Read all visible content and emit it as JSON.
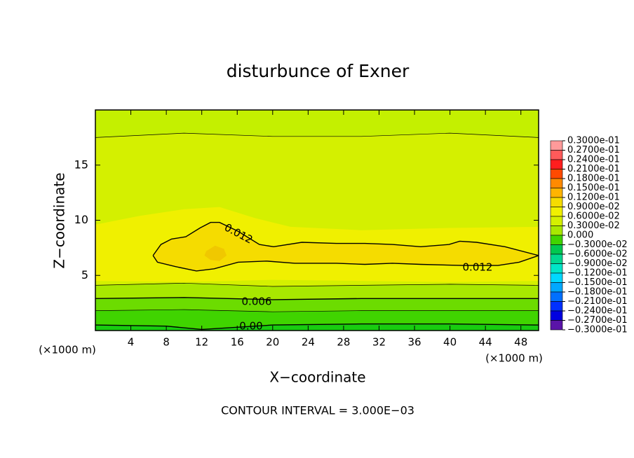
{
  "chart_data": {
    "type": "contour",
    "title": "disturbunce of Exner",
    "x_label": "X−coordinate",
    "y_label": "Z−coordinate",
    "x_unit_left": "(×1000 m)",
    "x_unit_right": "(×1000 m)",
    "footnote": "CONTOUR INTERVAL = 3.000E−03",
    "xlim": [
      0,
      50
    ],
    "ylim": [
      0,
      20
    ],
    "xticks": [
      4,
      8,
      12,
      16,
      20,
      24,
      28,
      32,
      36,
      40,
      44,
      48
    ],
    "yticks": [
      5,
      10,
      15
    ],
    "fills": [
      {
        "color": "#d4f000",
        "x": [
          0,
          50,
          50,
          0
        ],
        "z": [
          0,
          0,
          20,
          20
        ]
      },
      {
        "color": "#c4f000",
        "x": [
          0,
          10,
          20,
          30,
          40,
          50,
          50,
          0
        ],
        "z": [
          17.5,
          17.9,
          17.6,
          17.6,
          17.9,
          17.5,
          20,
          20
        ]
      },
      {
        "color": "#f0f000",
        "x": [
          0,
          5,
          10,
          14,
          18,
          22,
          30,
          40,
          50,
          50,
          40,
          30,
          20,
          10,
          0
        ],
        "z": [
          9.6,
          10.4,
          11.0,
          11.2,
          10.2,
          9.4,
          9.1,
          9.3,
          9.4,
          4.5,
          4.4,
          4.5,
          4.6,
          4.4,
          4.5
        ]
      },
      {
        "color": "#f5dc00",
        "x": [
          6.5,
          7.4,
          8.6,
          10.2,
          11.8,
          13.0,
          14.0,
          16.1,
          18.5,
          20.1,
          23.3,
          27.2,
          30.4,
          33.5,
          36.7,
          39.9,
          41.1,
          43.0,
          46.2,
          50,
          47.8,
          45.4,
          41.5,
          36.7,
          33.5,
          30.4,
          27.2,
          22.5,
          19.3,
          16.1,
          13.4,
          11.4,
          9.0,
          7.0,
          6.5
        ],
        "z": [
          6.8,
          7.8,
          8.3,
          8.5,
          9.3,
          9.8,
          9.8,
          9.0,
          7.8,
          7.6,
          8.0,
          7.9,
          7.9,
          7.8,
          7.6,
          7.8,
          8.1,
          8.0,
          7.6,
          6.8,
          6.2,
          5.9,
          5.9,
          6.0,
          6.1,
          6.0,
          6.1,
          6.1,
          6.3,
          6.2,
          5.6,
          5.4,
          5.8,
          6.2,
          6.8
        ]
      },
      {
        "color": "#f0c800",
        "x": [
          12.5,
          13.5,
          14.5,
          14.8,
          14.0,
          13.0,
          12.3
        ],
        "z": [
          7.2,
          7.7,
          7.4,
          6.8,
          6.3,
          6.4,
          6.8
        ]
      },
      {
        "color": "#a8e800",
        "x": [
          0,
          10,
          20,
          30,
          40,
          50,
          50,
          0
        ],
        "z": [
          4.1,
          4.3,
          4.0,
          4.1,
          4.2,
          4.1,
          0,
          0
        ]
      },
      {
        "color": "#6cdc00",
        "x": [
          0,
          10,
          20,
          30,
          40,
          50,
          50,
          0
        ],
        "z": [
          2.9,
          3.0,
          2.8,
          2.9,
          2.9,
          2.9,
          0,
          0
        ]
      },
      {
        "color": "#40d400",
        "x": [
          0,
          10,
          20,
          30,
          40,
          50,
          50,
          0
        ],
        "z": [
          1.8,
          1.9,
          1.7,
          1.8,
          1.8,
          1.8,
          0,
          0
        ]
      },
      {
        "color": "#18cc10",
        "x": [
          0,
          8,
          12,
          16,
          20,
          30,
          40,
          50,
          50,
          0
        ],
        "z": [
          0.5,
          0.4,
          0.1,
          0.3,
          0.5,
          0.6,
          0.6,
          0.5,
          0,
          0
        ]
      }
    ],
    "contours": [
      {
        "label": "0.012",
        "x": [
          6.5,
          7.4,
          8.6,
          10.2,
          11.8,
          13.0,
          14.0,
          16.1,
          18.5,
          20.1,
          23.3,
          27.2,
          30.4,
          33.5,
          36.7,
          39.9,
          41.1,
          43.0,
          46.2,
          50,
          47.8,
          45.4,
          41.5,
          36.7,
          33.5,
          30.4,
          27.2,
          22.5,
          19.3,
          16.1,
          13.4,
          11.4,
          9.0,
          7.0,
          6.5
        ],
        "z": [
          6.8,
          7.8,
          8.3,
          8.5,
          9.3,
          9.8,
          9.8,
          9.0,
          7.8,
          7.6,
          8.0,
          7.9,
          7.9,
          7.8,
          7.6,
          7.8,
          8.1,
          8.0,
          7.6,
          6.8,
          6.2,
          5.9,
          5.9,
          6.0,
          6.1,
          6.0,
          6.1,
          6.1,
          6.3,
          6.2,
          5.6,
          5.4,
          5.8,
          6.2,
          6.8
        ]
      },
      {
        "label": "0.006",
        "x": [
          0,
          10,
          20,
          30,
          40,
          50
        ],
        "z": [
          2.9,
          3.0,
          2.8,
          2.9,
          2.9,
          2.9
        ]
      },
      {
        "label": "0.00",
        "x": [
          0,
          8,
          12,
          16,
          20,
          30,
          40,
          50
        ],
        "z": [
          0.5,
          0.4,
          0.1,
          0.3,
          0.5,
          0.6,
          0.6,
          0.5
        ]
      },
      {
        "x": [
          0,
          10,
          20,
          30,
          40,
          50
        ],
        "z": [
          17.5,
          17.9,
          17.6,
          17.6,
          17.9,
          17.5
        ]
      },
      {
        "x": [
          0,
          10,
          20,
          30,
          40,
          50
        ],
        "z": [
          4.1,
          4.3,
          4.0,
          4.1,
          4.2,
          4.1
        ]
      },
      {
        "x": [
          0,
          10,
          20,
          30,
          40,
          50
        ],
        "z": [
          1.8,
          1.9,
          1.7,
          1.8,
          1.8,
          1.8
        ]
      }
    ],
    "colorbar": {
      "levels": [
        {
          "value": 0.03,
          "label": "0.3000e-01"
        },
        {
          "value": 0.027,
          "label": "0.2700e-01"
        },
        {
          "value": 0.024,
          "label": "0.2400e-01"
        },
        {
          "value": 0.021,
          "label": "0.2100e-01"
        },
        {
          "value": 0.018,
          "label": "0.1800e-01"
        },
        {
          "value": 0.015,
          "label": "0.1500e-01"
        },
        {
          "value": 0.012,
          "label": "0.1200e-01"
        },
        {
          "value": 0.009,
          "label": "0.9000e-02"
        },
        {
          "value": 0.006,
          "label": "0.6000e-02"
        },
        {
          "value": 0.003,
          "label": "0.3000e-02"
        },
        {
          "value": 0,
          "label": "0.000"
        },
        {
          "value": -0.003,
          "label": "−0.3000e-02"
        },
        {
          "value": -0.006,
          "label": "−0.6000e-02"
        },
        {
          "value": -0.009,
          "label": "−0.9000e-02"
        },
        {
          "value": -0.012,
          "label": "−0.1200e-01"
        },
        {
          "value": -0.015,
          "label": "−0.1500e-01"
        },
        {
          "value": -0.018,
          "label": "−0.1800e-01"
        },
        {
          "value": -0.021,
          "label": "−0.2100e-01"
        },
        {
          "value": -0.024,
          "label": "−0.2400e-01"
        },
        {
          "value": -0.027,
          "label": "−0.2700e-01"
        },
        {
          "value": -0.03,
          "label": "−0.3000e-01"
        }
      ],
      "colors": [
        "#ff9a9a",
        "#ff5a5a",
        "#ff1e1e",
        "#ff4a00",
        "#ff8a00",
        "#ffb400",
        "#f5dc00",
        "#f0f000",
        "#d4f000",
        "#a8e800",
        "#40d400",
        "#00c850",
        "#00d890",
        "#00e6c8",
        "#00d8ff",
        "#00a8ff",
        "#0070ff",
        "#0030ff",
        "#0000e0",
        "#5a14a8"
      ]
    }
  }
}
